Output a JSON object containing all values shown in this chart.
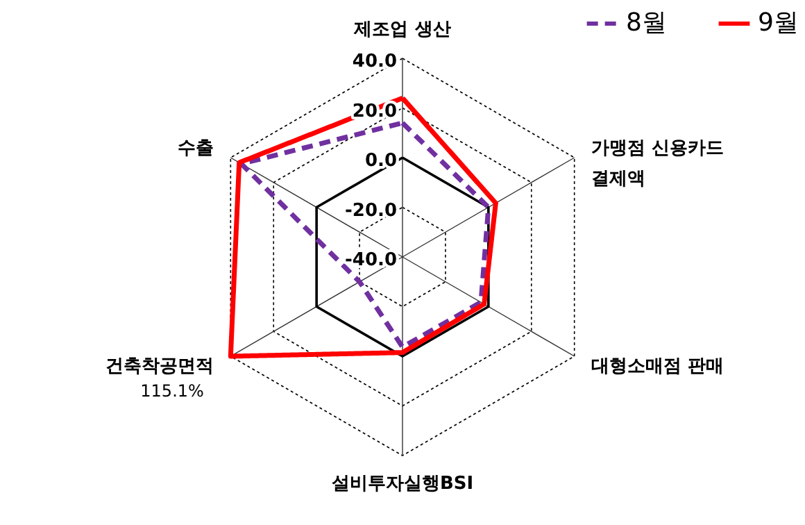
{
  "chart_data": {
    "type": "radar",
    "categories": [
      "제조업 생산",
      "가맹점 신용카드\n결제액",
      "대형소매점 판매",
      "설비투자실행BSI",
      "건축착공면적",
      "수출"
    ],
    "series": [
      {
        "name": "8월",
        "color": "#7030a0",
        "line_style": "dashed",
        "values": [
          14,
          0,
          -3.5,
          -3.7,
          -20,
          35
        ]
      },
      {
        "name": "9월",
        "color": "#ff0000",
        "line_style": "solid",
        "values": [
          24,
          3.4,
          -2,
          -1.5,
          40,
          36
        ]
      }
    ],
    "ylim": [
      -40,
      40
    ],
    "yticks": [
      {
        "value": -40,
        "label": "-40.0"
      },
      {
        "value": -20,
        "label": "-20.0"
      },
      {
        "value": 0,
        "label": "0.0"
      },
      {
        "value": 20,
        "label": "20.0"
      },
      {
        "value": 40,
        "label": "40.0"
      }
    ],
    "annotations": [
      "115.1%"
    ],
    "grid": true,
    "legend": "top right",
    "marker": "none"
  }
}
